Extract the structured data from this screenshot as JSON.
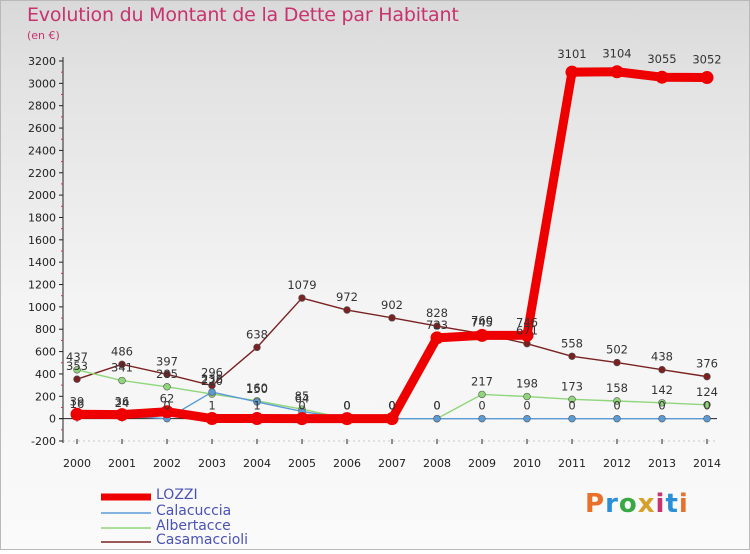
{
  "header": {
    "title": "Evolution du Montant de la Dette par Habitant",
    "subtitle": "(en €)"
  },
  "logo": {
    "text": "Proxiti",
    "colors": [
      "#e8702a",
      "#2a8fd6",
      "#3aa845",
      "#d6a12a",
      "#c8326e",
      "#2a8fd6",
      "#e8702a"
    ]
  },
  "chart_data": {
    "type": "line",
    "x": [
      2000,
      2001,
      2002,
      2003,
      2004,
      2005,
      2006,
      2007,
      2008,
      2009,
      2010,
      2011,
      2012,
      2013,
      2014
    ],
    "ylim": [
      -200,
      3200
    ],
    "yticks": [
      -200,
      0,
      200,
      400,
      600,
      800,
      1000,
      1200,
      1400,
      1600,
      1800,
      2000,
      2200,
      2400,
      2600,
      2800,
      3000,
      3200
    ],
    "grid": false,
    "legend_position": "bottom-left",
    "series": [
      {
        "name": "LOZZI",
        "color": "#ee0000",
        "values": [
          39,
          36,
          62,
          1,
          1,
          0,
          0,
          0,
          723,
          745,
          746,
          3101,
          3104,
          3055,
          3052
        ],
        "labels": [
          "39",
          "36",
          "62",
          "1",
          "1",
          "0",
          "0",
          "0",
          "723",
          "745",
          "746",
          "3101",
          "3104",
          "3055",
          "3052"
        ]
      },
      {
        "name": "Calacuccia",
        "color": "#5b9bd5",
        "values": [
          16,
          24,
          0,
          238,
          150,
          64,
          0,
          0,
          0,
          0,
          0,
          0,
          0,
          0,
          0
        ],
        "labels": [
          "16",
          "24",
          "0",
          "238",
          "150",
          "64",
          "0",
          "0",
          "0",
          "0",
          "0",
          "0",
          "0",
          "0",
          "0"
        ]
      },
      {
        "name": "Albertacce",
        "color": "#8fd67a",
        "values": [
          437,
          341,
          285,
          220,
          160,
          85,
          0,
          0,
          0,
          217,
          198,
          173,
          158,
          142,
          124
        ],
        "labels": [
          "437",
          "341",
          "285",
          "220",
          "160",
          "85",
          "0",
          "0",
          "0",
          "217",
          "198",
          "173",
          "158",
          "142",
          "124"
        ]
      },
      {
        "name": "Casamaccioli",
        "color": "#7a2222",
        "values": [
          353,
          486,
          397,
          296,
          638,
          1079,
          972,
          902,
          828,
          760,
          671,
          558,
          502,
          438,
          376
        ],
        "labels": [
          "353",
          "486",
          "397",
          "296",
          "638",
          "1079",
          "972",
          "902",
          "828",
          "760",
          "671",
          "558",
          "502",
          "438",
          "376"
        ]
      }
    ]
  }
}
